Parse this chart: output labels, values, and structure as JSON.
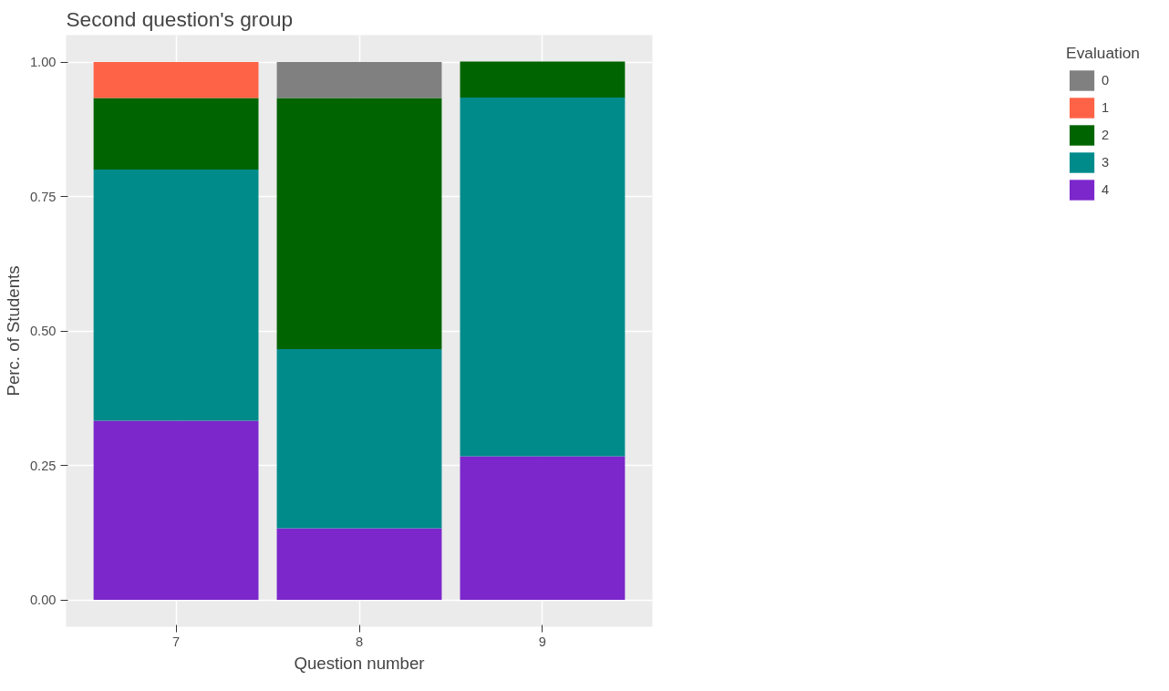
{
  "chart_data": {
    "type": "bar",
    "title": "Second question's group",
    "xlabel": "Question number",
    "ylabel": "Perc. of Students",
    "legend_title": "Evaluation",
    "categories": [
      "7",
      "8",
      "9"
    ],
    "stacked": true,
    "series": [
      {
        "name": "4",
        "color": "#7b27cc",
        "values": [
          0.333,
          0.133,
          0.267
        ]
      },
      {
        "name": "3",
        "color": "#008b8b",
        "values": [
          0.467,
          0.333,
          0.667
        ]
      },
      {
        "name": "2",
        "color": "#006400",
        "values": [
          0.133,
          0.467,
          0.067
        ]
      },
      {
        "name": "1",
        "color": "#ff6347",
        "values": [
          0.067,
          0,
          0
        ]
      },
      {
        "name": "0",
        "color": "#808080",
        "values": [
          0,
          0.067,
          0
        ]
      }
    ],
    "ylim": [
      -0.05,
      1.05
    ],
    "yticks": [
      {
        "value": 0,
        "label": "0.00"
      },
      {
        "value": 0.25,
        "label": "0.25"
      },
      {
        "value": 0.5,
        "label": "0.50"
      },
      {
        "value": 0.75,
        "label": "0.75"
      },
      {
        "value": 1,
        "label": "1.00"
      }
    ],
    "grid": true,
    "legend": "right"
  }
}
